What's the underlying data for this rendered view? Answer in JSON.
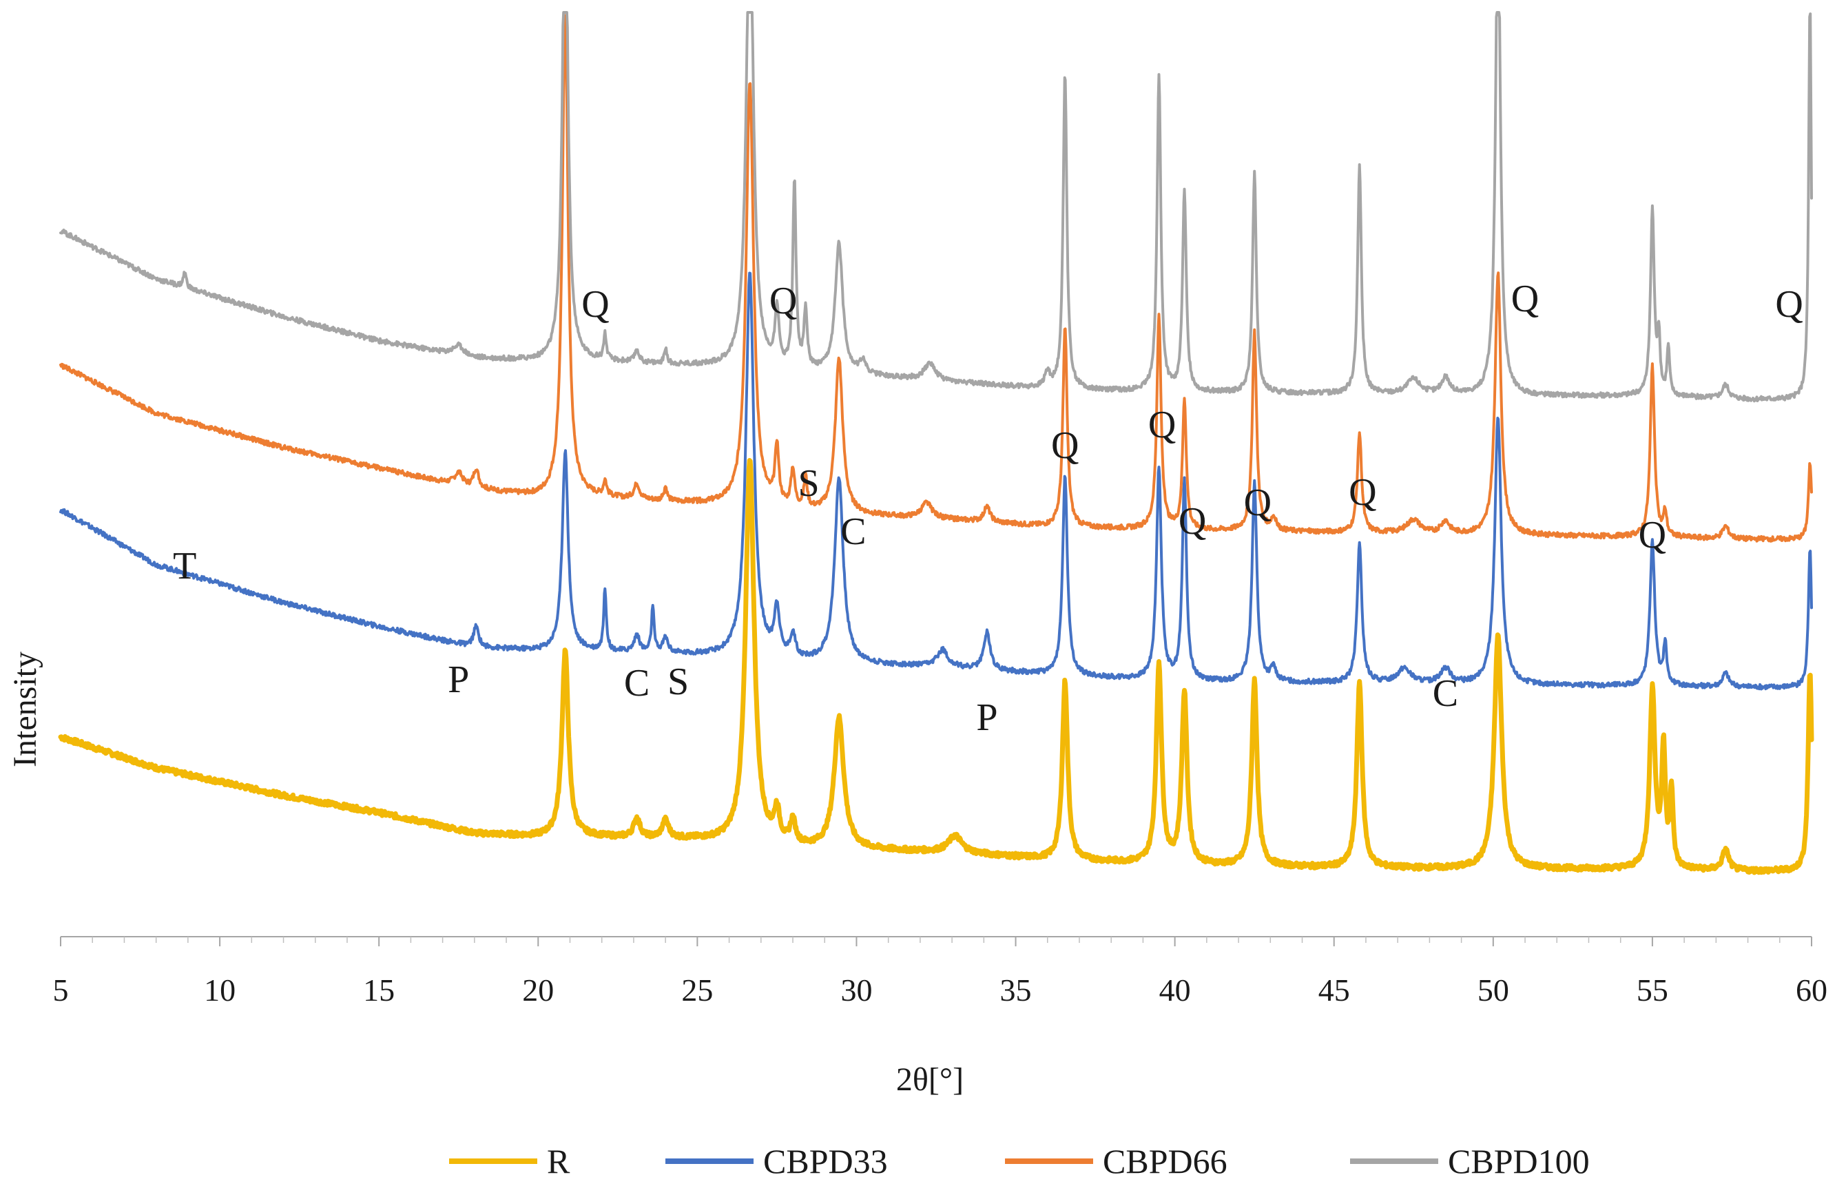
{
  "chart_data": {
    "type": "line",
    "title": "",
    "xlabel": "2θ[°]",
    "ylabel": "Intensity",
    "xlim": [
      5,
      60
    ],
    "xticks": [
      5,
      10,
      15,
      20,
      25,
      30,
      35,
      40,
      45,
      50,
      55,
      60
    ],
    "yaxis_visible": false,
    "grid": false,
    "legend": {
      "position": "bottom",
      "entries": [
        "R",
        "CBPD33",
        "CBPD66",
        "CBPD100"
      ]
    },
    "series": [
      {
        "name": "R",
        "color": "#F2B807",
        "offset": 0,
        "width": 7,
        "baseline": [
          [
            5,
            290
          ],
          [
            8,
            245
          ],
          [
            12,
            205
          ],
          [
            15,
            180
          ],
          [
            18,
            150
          ],
          [
            20,
            145
          ],
          [
            21,
            146
          ],
          [
            25,
            140
          ],
          [
            28,
            128
          ],
          [
            30,
            126
          ],
          [
            33,
            122
          ],
          [
            36,
            112
          ],
          [
            40,
            104
          ],
          [
            45,
            100
          ],
          [
            50,
            98
          ],
          [
            55,
            98
          ],
          [
            58,
            95
          ],
          [
            60,
            95
          ]
        ],
        "peaks": [
          [
            20.85,
            270,
            0.12
          ],
          [
            23.1,
            28,
            0.12
          ],
          [
            24.0,
            26,
            0.12
          ],
          [
            26.65,
            560,
            0.16
          ],
          [
            27.5,
            45,
            0.1
          ],
          [
            28.0,
            35,
            0.1
          ],
          [
            29.45,
            190,
            0.18
          ],
          [
            33.1,
            24,
            0.25
          ],
          [
            36.55,
            260,
            0.1
          ],
          [
            39.5,
            290,
            0.1
          ],
          [
            40.3,
            250,
            0.1
          ],
          [
            42.5,
            270,
            0.1
          ],
          [
            45.8,
            270,
            0.1
          ],
          [
            50.15,
            340,
            0.14
          ],
          [
            55.0,
            260,
            0.1
          ],
          [
            55.35,
            170,
            0.07
          ],
          [
            55.6,
            110,
            0.06
          ],
          [
            57.3,
            30,
            0.12
          ],
          [
            59.95,
            290,
            0.07
          ]
        ]
      },
      {
        "name": "CBPD33",
        "color": "#4472C4",
        "offset": 240,
        "width": 4,
        "baseline": [
          [
            5,
            380
          ],
          [
            8,
            300
          ],
          [
            12,
            245
          ],
          [
            15,
            210
          ],
          [
            18,
            180
          ],
          [
            20,
            175
          ],
          [
            21,
            176
          ],
          [
            25,
            168
          ],
          [
            28,
            158
          ],
          [
            30,
            155
          ],
          [
            33,
            150
          ],
          [
            36,
            140
          ],
          [
            40,
            130
          ],
          [
            45,
            128
          ],
          [
            50,
            125
          ],
          [
            55,
            124
          ],
          [
            58,
            122
          ],
          [
            60,
            122
          ]
        ],
        "peaks": [
          [
            18.05,
            30,
            0.1
          ],
          [
            20.85,
            290,
            0.11
          ],
          [
            22.1,
            90,
            0.05
          ],
          [
            23.1,
            25,
            0.1
          ],
          [
            23.6,
            65,
            0.05
          ],
          [
            24.0,
            22,
            0.1
          ],
          [
            26.65,
            560,
            0.15
          ],
          [
            27.5,
            70,
            0.1
          ],
          [
            28.0,
            35,
            0.1
          ],
          [
            29.45,
            270,
            0.16
          ],
          [
            32.7,
            25,
            0.2
          ],
          [
            34.1,
            55,
            0.12
          ],
          [
            36.55,
            290,
            0.09
          ],
          [
            39.5,
            310,
            0.09
          ],
          [
            40.3,
            290,
            0.08
          ],
          [
            42.5,
            290,
            0.09
          ],
          [
            43.1,
            20,
            0.1
          ],
          [
            45.8,
            200,
            0.09
          ],
          [
            47.2,
            22,
            0.25
          ],
          [
            48.5,
            22,
            0.2
          ],
          [
            50.15,
            390,
            0.12
          ],
          [
            55.0,
            210,
            0.09
          ],
          [
            55.4,
            60,
            0.06
          ],
          [
            57.3,
            20,
            0.12
          ],
          [
            59.95,
            200,
            0.06
          ]
        ]
      },
      {
        "name": "CBPD66",
        "color": "#ED7D31",
        "offset": 440,
        "width": 4,
        "baseline": [
          [
            5,
            390
          ],
          [
            8,
            320
          ],
          [
            12,
            270
          ],
          [
            15,
            240
          ],
          [
            18,
            210
          ],
          [
            20,
            198
          ],
          [
            21,
            200
          ],
          [
            25,
            188
          ],
          [
            28,
            178
          ],
          [
            30,
            172
          ],
          [
            33,
            165
          ],
          [
            36,
            155
          ],
          [
            40,
            150
          ],
          [
            45,
            147
          ],
          [
            50,
            143
          ],
          [
            55,
            140
          ],
          [
            58,
            137
          ],
          [
            60,
            137
          ]
        ],
        "peaks": [
          [
            17.5,
            18,
            0.15
          ],
          [
            18.05,
            28,
            0.1
          ],
          [
            20.85,
            700,
            0.11
          ],
          [
            22.1,
            22,
            0.06
          ],
          [
            23.1,
            22,
            0.1
          ],
          [
            24.0,
            20,
            0.06
          ],
          [
            26.65,
            620,
            0.14
          ],
          [
            27.5,
            85,
            0.07
          ],
          [
            28.0,
            55,
            0.07
          ],
          [
            28.4,
            45,
            0.06
          ],
          [
            29.45,
            225,
            0.14
          ],
          [
            32.2,
            22,
            0.2
          ],
          [
            34.1,
            22,
            0.12
          ],
          [
            36.55,
            290,
            0.08
          ],
          [
            39.5,
            310,
            0.08
          ],
          [
            40.3,
            190,
            0.07
          ],
          [
            42.5,
            290,
            0.08
          ],
          [
            43.1,
            18,
            0.1
          ],
          [
            45.8,
            145,
            0.08
          ],
          [
            47.5,
            20,
            0.25
          ],
          [
            48.5,
            18,
            0.15
          ],
          [
            50.15,
            380,
            0.11
          ],
          [
            55.0,
            250,
            0.08
          ],
          [
            55.4,
            35,
            0.06
          ],
          [
            57.3,
            18,
            0.12
          ],
          [
            59.95,
            110,
            0.06
          ]
        ]
      },
      {
        "name": "CBPD100",
        "color": "#A5A5A5",
        "offset": 630,
        "width": 4,
        "baseline": [
          [
            5,
            395
          ],
          [
            8,
            325
          ],
          [
            12,
            270
          ],
          [
            15,
            235
          ],
          [
            18,
            210
          ],
          [
            20,
            205
          ],
          [
            21,
            207
          ],
          [
            25,
            198
          ],
          [
            28,
            190
          ],
          [
            30,
            185
          ],
          [
            33,
            175
          ],
          [
            36,
            165
          ],
          [
            40,
            160
          ],
          [
            45,
            158
          ],
          [
            50,
            155
          ],
          [
            55,
            155
          ],
          [
            58,
            150
          ],
          [
            60,
            150
          ]
        ],
        "peaks": [
          [
            8.9,
            22,
            0.06
          ],
          [
            17.5,
            14,
            0.2
          ],
          [
            20.85,
            720,
            0.1
          ],
          [
            22.1,
            38,
            0.05
          ],
          [
            23.1,
            18,
            0.08
          ],
          [
            24.0,
            22,
            0.05
          ],
          [
            26.65,
            700,
            0.13
          ],
          [
            27.5,
            85,
            0.07
          ],
          [
            28.05,
            270,
            0.06
          ],
          [
            28.4,
            85,
            0.06
          ],
          [
            29.45,
            190,
            0.14
          ],
          [
            30.2,
            20,
            0.1
          ],
          [
            32.3,
            25,
            0.2
          ],
          [
            36.0,
            22,
            0.1
          ],
          [
            36.55,
            460,
            0.07
          ],
          [
            39.5,
            460,
            0.07
          ],
          [
            40.3,
            290,
            0.07
          ],
          [
            42.5,
            320,
            0.07
          ],
          [
            45.8,
            330,
            0.07
          ],
          [
            47.5,
            22,
            0.25
          ],
          [
            48.5,
            25,
            0.15
          ],
          [
            50.15,
            720,
            0.09
          ],
          [
            55.0,
            270,
            0.07
          ],
          [
            55.2,
            80,
            0.05
          ],
          [
            55.5,
            70,
            0.05
          ],
          [
            57.3,
            20,
            0.12
          ],
          [
            59.95,
            580,
            0.05
          ]
        ]
      }
    ],
    "annotations": [
      {
        "text": "T",
        "x": 8.9,
        "level": 520
      },
      {
        "text": "P",
        "x": 17.5,
        "level": 355
      },
      {
        "text": "Q",
        "x": 21.8,
        "level": 900
      },
      {
        "text": "C",
        "x": 23.1,
        "level": 350
      },
      {
        "text": "S",
        "x": 24.4,
        "level": 352
      },
      {
        "text": "Q",
        "x": 27.7,
        "level": 905
      },
      {
        "text": "S",
        "x": 28.5,
        "level": 640
      },
      {
        "text": "C",
        "x": 29.9,
        "level": 570
      },
      {
        "text": "Q",
        "x": 36.55,
        "level": 695
      },
      {
        "text": "Q",
        "x": 39.6,
        "level": 725
      },
      {
        "text": "Q",
        "x": 40.55,
        "level": 585
      },
      {
        "text": "Q",
        "x": 42.6,
        "level": 612
      },
      {
        "text": "Q",
        "x": 45.9,
        "level": 627
      },
      {
        "text": "C",
        "x": 48.5,
        "level": 335
      },
      {
        "text": "Q",
        "x": 51.0,
        "level": 908
      },
      {
        "text": "Q",
        "x": 55.0,
        "level": 565
      },
      {
        "text": "Q",
        "x": 59.3,
        "level": 900
      },
      {
        "text": "P",
        "x": 34.1,
        "level": 300
      }
    ]
  }
}
